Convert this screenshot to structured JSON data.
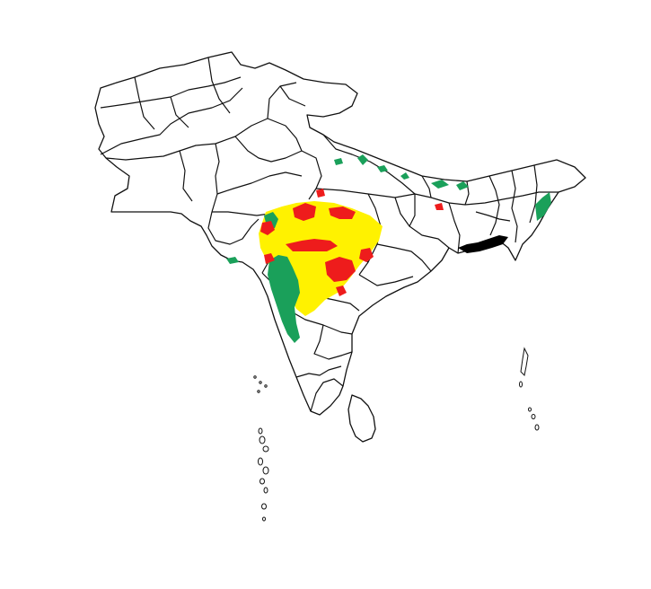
{
  "map": {
    "region": "South Asia",
    "legend": [],
    "colors": {
      "background": "#ffffff",
      "boundary": "#111111",
      "red_class": "#ee1c1c",
      "yellow_class": "#fff200",
      "green_class": "#1aa05a",
      "coastal_delta": "#000000"
    },
    "shaded_classes": [
      "red",
      "yellow",
      "green"
    ]
  }
}
